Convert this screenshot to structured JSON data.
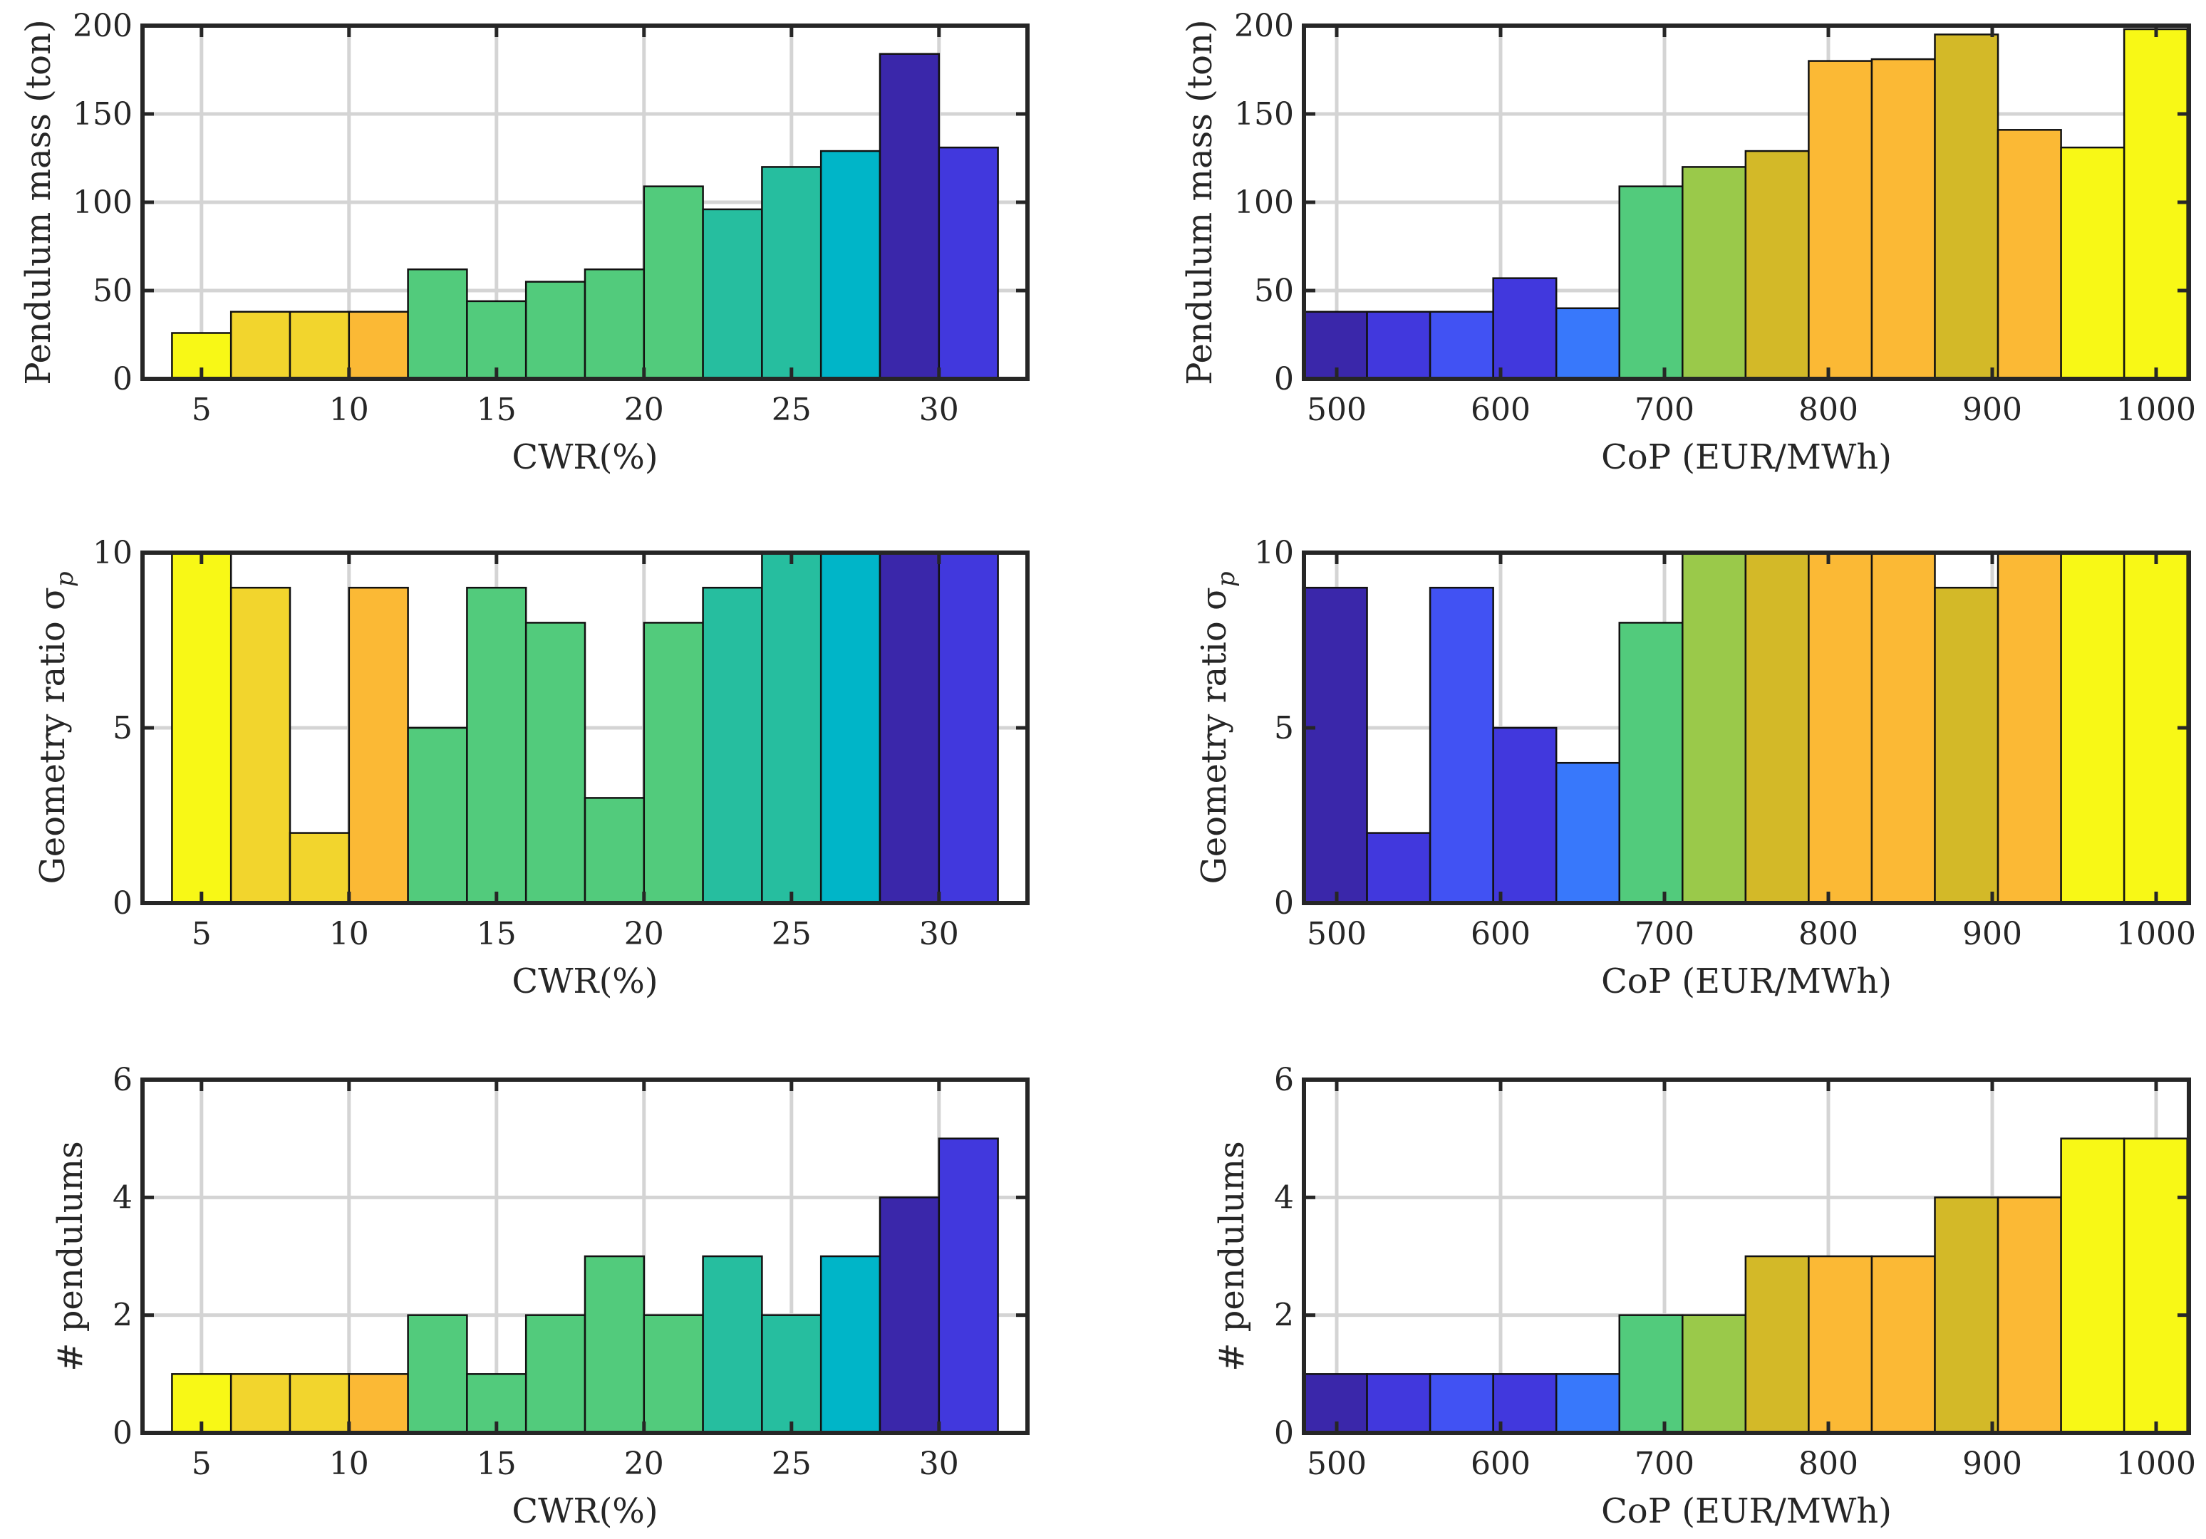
{
  "figure": {
    "charts": [
      {
        "type": "bar",
        "xlabel": "CWR(%)",
        "ylabel": "Pendulum mass (ton)",
        "ylim": [
          0,
          200
        ],
        "yticks": [
          0,
          50,
          100,
          150,
          200
        ],
        "xlim": [
          3,
          33
        ],
        "xticks": [
          5,
          10,
          15,
          20,
          25,
          30
        ],
        "bin_edges": [
          4,
          6,
          8,
          10,
          12,
          14,
          16,
          18,
          20,
          22,
          24,
          26,
          28,
          30,
          32
        ],
        "values": [
          26,
          38,
          38,
          38,
          62,
          44,
          55,
          62,
          109,
          96,
          120,
          129,
          184,
          131
        ],
        "colors": [
          "#f8f816",
          "#f2d52d",
          "#f2d52d",
          "#fbb935",
          "#52cb7c",
          "#52cb7c",
          "#52cb7c",
          "#52cb7c",
          "#52cb7c",
          "#26be9f",
          "#26be9f",
          "#00b5c8",
          "#3a27aa",
          "#4138dd"
        ]
      },
      {
        "type": "bar",
        "xlabel": "CoP (EUR/MWh)",
        "ylabel": "Pendulum mass (ton)",
        "ylim": [
          0,
          200
        ],
        "yticks": [
          0,
          50,
          100,
          150,
          200
        ],
        "xlim": [
          480,
          1020
        ],
        "xticks": [
          500,
          600,
          700,
          800,
          900,
          1000
        ],
        "bin_edges": [
          480,
          518.5,
          557,
          595.5,
          634,
          672.5,
          711,
          749.5,
          788,
          826.5,
          865,
          903.5,
          942,
          980.5,
          1019
        ],
        "values": [
          38,
          38,
          38,
          57,
          40,
          109,
          120,
          129,
          180,
          181,
          195,
          141,
          131,
          198
        ],
        "colors": [
          "#3a27aa",
          "#4138dd",
          "#4152f3",
          "#4138dd",
          "#3878fb",
          "#52cb7c",
          "#9ac94a",
          "#d3b928",
          "#fbb935",
          "#fbb935",
          "#d3b928",
          "#fbb935",
          "#f8f816",
          "#f8f816"
        ]
      },
      {
        "type": "bar",
        "xlabel": "CWR(%)",
        "ylabel": "Geometry ratio σp",
        "ylabel_main": "Geometry ratio σ",
        "ylabel_sub": "p",
        "ylim": [
          0,
          10
        ],
        "yticks": [
          0,
          5,
          10
        ],
        "xlim": [
          3,
          33
        ],
        "xticks": [
          5,
          10,
          15,
          20,
          25,
          30
        ],
        "bin_edges": [
          4,
          6,
          8,
          10,
          12,
          14,
          16,
          18,
          20,
          22,
          24,
          26,
          28,
          30,
          32
        ],
        "values": [
          10,
          9,
          2,
          9,
          5,
          9,
          8,
          3,
          8,
          9,
          10,
          10,
          10,
          10
        ],
        "colors": [
          "#f8f816",
          "#f2d52d",
          "#f2d52d",
          "#fbb935",
          "#52cb7c",
          "#52cb7c",
          "#52cb7c",
          "#52cb7c",
          "#52cb7c",
          "#26be9f",
          "#26be9f",
          "#00b5c8",
          "#3a27aa",
          "#4138dd"
        ]
      },
      {
        "type": "bar",
        "xlabel": "CoP (EUR/MWh)",
        "ylabel": "Geometry ratio σp",
        "ylabel_main": "Geometry ratio σ",
        "ylabel_sub": "p",
        "ylim": [
          0,
          10
        ],
        "yticks": [
          0,
          5,
          10
        ],
        "xlim": [
          480,
          1020
        ],
        "xticks": [
          500,
          600,
          700,
          800,
          900,
          1000
        ],
        "bin_edges": [
          480,
          518.5,
          557,
          595.5,
          634,
          672.5,
          711,
          749.5,
          788,
          826.5,
          865,
          903.5,
          942,
          980.5,
          1019
        ],
        "values": [
          9,
          2,
          9,
          5,
          4,
          8,
          10,
          10,
          10,
          10,
          9,
          10,
          10,
          10
        ],
        "colors": [
          "#3a27aa",
          "#4138dd",
          "#4152f3",
          "#4138dd",
          "#3878fb",
          "#52cb7c",
          "#9ac94a",
          "#d3b928",
          "#fbb935",
          "#fbb935",
          "#d3b928",
          "#fbb935",
          "#f8f816",
          "#f8f816"
        ]
      },
      {
        "type": "bar",
        "xlabel": "CWR(%)",
        "ylabel": "# pendulums",
        "ylim": [
          0,
          6
        ],
        "yticks": [
          0,
          2,
          4,
          6
        ],
        "xlim": [
          3,
          33
        ],
        "xticks": [
          5,
          10,
          15,
          20,
          25,
          30
        ],
        "bin_edges": [
          4,
          6,
          8,
          10,
          12,
          14,
          16,
          18,
          20,
          22,
          24,
          26,
          28,
          30,
          32
        ],
        "values": [
          1,
          1,
          1,
          1,
          2,
          1,
          2,
          3,
          2,
          3,
          2,
          3,
          4,
          5
        ],
        "colors": [
          "#f8f816",
          "#f2d52d",
          "#f2d52d",
          "#fbb935",
          "#52cb7c",
          "#52cb7c",
          "#52cb7c",
          "#52cb7c",
          "#52cb7c",
          "#26be9f",
          "#26be9f",
          "#00b5c8",
          "#3a27aa",
          "#4138dd"
        ]
      },
      {
        "type": "bar",
        "xlabel": "CoP (EUR/MWh)",
        "ylabel": "# pendulums",
        "ylim": [
          0,
          6
        ],
        "yticks": [
          0,
          2,
          4,
          6
        ],
        "xlim": [
          480,
          1020
        ],
        "xticks": [
          500,
          600,
          700,
          800,
          900,
          1000
        ],
        "bin_edges": [
          480,
          518.5,
          557,
          595.5,
          634,
          672.5,
          711,
          749.5,
          788,
          826.5,
          865,
          903.5,
          942,
          980.5,
          1019
        ],
        "values": [
          1,
          1,
          1,
          1,
          1,
          2,
          2,
          3,
          3,
          3,
          4,
          4,
          5,
          5
        ],
        "colors": [
          "#3a27aa",
          "#4138dd",
          "#4152f3",
          "#4138dd",
          "#3878fb",
          "#52cb7c",
          "#9ac94a",
          "#d3b928",
          "#fbb935",
          "#fbb935",
          "#d3b928",
          "#fbb935",
          "#f8f816",
          "#f8f816"
        ]
      }
    ]
  }
}
